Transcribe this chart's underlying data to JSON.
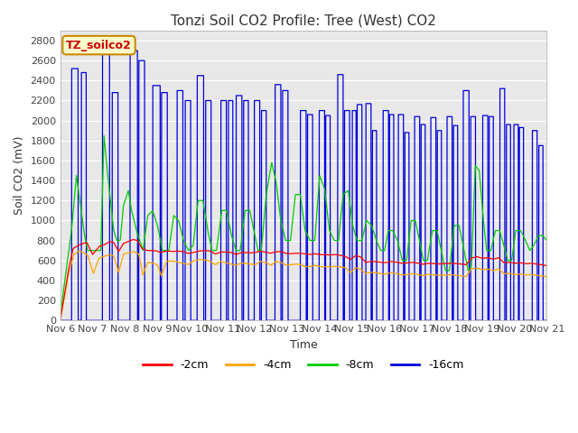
{
  "title": "Tonzi Soil CO2 Profile: Tree (West) CO2",
  "ylabel": "Soil CO2 (mV)",
  "xlabel": "Time",
  "text_label": "TZ_soilco2",
  "ylim": [
    0,
    2900
  ],
  "xlim_start": 6.0,
  "xlim_end": 21.0,
  "xticks": [
    6,
    7,
    8,
    9,
    10,
    11,
    12,
    13,
    14,
    15,
    16,
    17,
    18,
    19,
    20,
    21
  ],
  "xtick_labels": [
    "Nov 6",
    "Nov 7",
    "Nov 8",
    "Nov 9",
    "Nov 10",
    "Nov 11",
    "Nov 12",
    "Nov 13",
    "Nov 14",
    "Nov 15",
    "Nov 16",
    "Nov 17",
    "Nov 18",
    "Nov 19",
    "Nov 20",
    "Nov 21"
  ],
  "yticks": [
    0,
    200,
    400,
    600,
    800,
    1000,
    1200,
    1400,
    1600,
    1800,
    2000,
    2200,
    2400,
    2600,
    2800
  ],
  "series_colors": [
    "#ff0000",
    "#ffa500",
    "#00cc00",
    "#0000dd"
  ],
  "series_labels": [
    "-2cm",
    "-4cm",
    "-8cm",
    "-16cm"
  ],
  "bg_color": "#e8e8e8",
  "title_fontsize": 11,
  "axis_label_fontsize": 9,
  "tick_fontsize": 8,
  "legend_fontsize": 9,
  "grid_color": "#ffffff",
  "text_box_bg": "#ffffcc",
  "text_box_edge": "#cc8800",
  "text_label_color": "#cc0000",
  "blue_spikes": [
    [
      6.35,
      6.36,
      6.55,
      6.56,
      2520
    ],
    [
      6.65,
      6.66,
      6.8,
      6.81,
      2480
    ],
    [
      7.3,
      7.31,
      7.52,
      7.53,
      2700
    ],
    [
      7.6,
      7.61,
      7.78,
      7.79,
      2280
    ],
    [
      8.15,
      8.16,
      8.38,
      8.39,
      2700
    ],
    [
      8.42,
      8.43,
      8.6,
      8.61,
      2600
    ],
    [
      8.85,
      8.86,
      9.08,
      9.09,
      2350
    ],
    [
      9.12,
      9.13,
      9.3,
      9.31,
      2280
    ],
    [
      9.6,
      9.61,
      9.78,
      9.79,
      2300
    ],
    [
      9.85,
      9.86,
      10.02,
      10.03,
      2200
    ],
    [
      10.22,
      10.23,
      10.42,
      10.43,
      2450
    ],
    [
      10.48,
      10.49,
      10.65,
      10.66,
      2200
    ],
    [
      10.95,
      10.96,
      11.12,
      11.13,
      2200
    ],
    [
      11.18,
      11.19,
      11.32,
      11.33,
      2200
    ],
    [
      11.42,
      11.43,
      11.6,
      11.61,
      2250
    ],
    [
      11.65,
      11.66,
      11.8,
      11.81,
      2200
    ],
    [
      11.98,
      11.99,
      12.15,
      12.16,
      2200
    ],
    [
      12.2,
      12.21,
      12.35,
      12.36,
      2100
    ],
    [
      12.62,
      12.63,
      12.8,
      12.81,
      2360
    ],
    [
      12.85,
      12.86,
      13.02,
      13.03,
      2300
    ],
    [
      13.4,
      13.41,
      13.58,
      13.59,
      2100
    ],
    [
      13.62,
      13.63,
      13.78,
      13.79,
      2060
    ],
    [
      13.98,
      13.99,
      14.15,
      14.16,
      2100
    ],
    [
      14.18,
      14.19,
      14.32,
      14.33,
      2050
    ],
    [
      14.55,
      14.56,
      14.72,
      14.73,
      2460
    ],
    [
      14.76,
      14.77,
      14.92,
      14.93,
      2100
    ],
    [
      15.0,
      15.01,
      15.12,
      15.13,
      2100
    ],
    [
      15.15,
      15.16,
      15.3,
      15.31,
      2160
    ],
    [
      15.42,
      15.43,
      15.58,
      15.59,
      2170
    ],
    [
      15.62,
      15.63,
      15.75,
      15.76,
      1900
    ],
    [
      15.95,
      15.96,
      16.12,
      16.13,
      2100
    ],
    [
      16.15,
      16.16,
      16.28,
      16.29,
      2060
    ],
    [
      16.42,
      16.43,
      16.58,
      16.59,
      2060
    ],
    [
      16.62,
      16.63,
      16.75,
      16.76,
      1880
    ],
    [
      16.92,
      16.93,
      17.08,
      17.09,
      2040
    ],
    [
      17.12,
      17.13,
      17.25,
      17.26,
      1960
    ],
    [
      17.42,
      17.43,
      17.58,
      17.59,
      2030
    ],
    [
      17.62,
      17.63,
      17.75,
      17.76,
      1900
    ],
    [
      17.92,
      17.93,
      18.08,
      18.09,
      2040
    ],
    [
      18.12,
      18.13,
      18.25,
      18.26,
      1950
    ],
    [
      18.42,
      18.43,
      18.6,
      18.61,
      2300
    ],
    [
      18.65,
      18.66,
      18.8,
      18.81,
      2040
    ],
    [
      19.02,
      19.03,
      19.18,
      19.19,
      2050
    ],
    [
      19.22,
      19.23,
      19.35,
      19.36,
      2040
    ],
    [
      19.55,
      19.56,
      19.7,
      19.71,
      2320
    ],
    [
      19.75,
      19.76,
      19.88,
      19.89,
      1960
    ],
    [
      19.98,
      19.99,
      20.12,
      20.13,
      1960
    ],
    [
      20.15,
      20.16,
      20.28,
      20.29,
      1930
    ],
    [
      20.55,
      20.56,
      20.7,
      20.71,
      1900
    ],
    [
      20.75,
      20.76,
      20.88,
      20.89,
      1750
    ]
  ]
}
